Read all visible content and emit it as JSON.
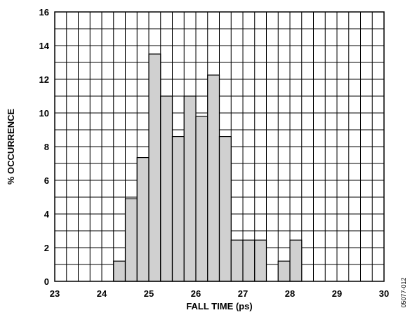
{
  "chart_data": {
    "type": "bar",
    "title": "",
    "xlabel": "FALL TIME (ps)",
    "ylabel": "% OCCURRENCE",
    "xlim": [
      23,
      30
    ],
    "ylim": [
      0,
      16
    ],
    "x_ticks": [
      "23",
      "24",
      "25",
      "26",
      "27",
      "28",
      "29",
      "30"
    ],
    "y_ticks": [
      "0",
      "2",
      "4",
      "6",
      "8",
      "10",
      "12",
      "14",
      "16"
    ],
    "bin_width": 0.25,
    "bins": [
      {
        "x_start": 24.25,
        "value": 1.2
      },
      {
        "x_start": 24.5,
        "value": 4.9
      },
      {
        "x_start": 24.75,
        "value": 7.35
      },
      {
        "x_start": 25.0,
        "value": 13.5
      },
      {
        "x_start": 25.25,
        "value": 11.0
      },
      {
        "x_start": 25.5,
        "value": 8.6
      },
      {
        "x_start": 25.75,
        "value": 11.0
      },
      {
        "x_start": 26.0,
        "value": 9.8
      },
      {
        "x_start": 26.25,
        "value": 12.25
      },
      {
        "x_start": 26.5,
        "value": 8.6
      },
      {
        "x_start": 26.75,
        "value": 2.45
      },
      {
        "x_start": 27.0,
        "value": 2.45
      },
      {
        "x_start": 27.25,
        "value": 2.45
      },
      {
        "x_start": 27.75,
        "value": 1.2
      },
      {
        "x_start": 28.0,
        "value": 2.45
      }
    ],
    "grid": true,
    "bar_color": "#d0d0d0"
  },
  "figure_id": "05077-012"
}
